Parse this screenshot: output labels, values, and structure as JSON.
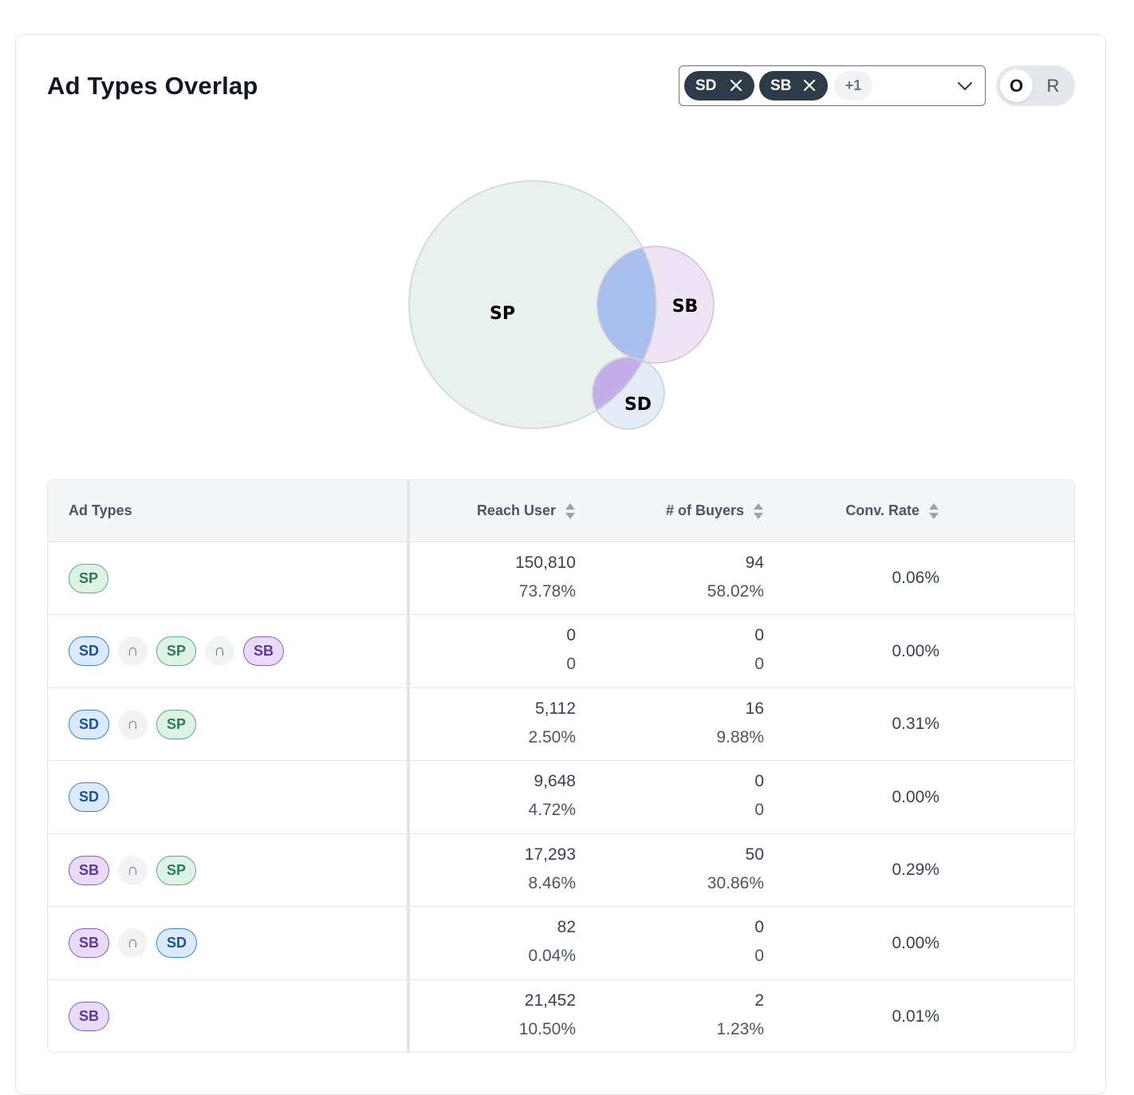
{
  "panel": {
    "title": "Ad Types Overlap"
  },
  "filter": {
    "chips": [
      {
        "label": "SD"
      },
      {
        "label": "SB"
      }
    ],
    "more_label": "+1"
  },
  "toggle": {
    "option_o": "O",
    "option_r": "R",
    "selected": "O"
  },
  "venn": {
    "sets": [
      {
        "label": "SP",
        "color": "#e8f1ee"
      },
      {
        "label": "SB",
        "color": "#efe4f6"
      },
      {
        "label": "SD",
        "color": "#e4ecf8"
      }
    ],
    "intersection_colors": {
      "SP_SB": "#a9bfee",
      "SP_SD": "#c4aee9"
    }
  },
  "table": {
    "headers": {
      "ad_types": "Ad Types",
      "reach_user": "Reach User",
      "buyers": "# of Buyers",
      "conv_rate": "Conv. Rate"
    },
    "rows": [
      {
        "types": [
          "SP"
        ],
        "reach": "150,810",
        "reach_pct": "73.78%",
        "buyers": "94",
        "buyers_pct": "58.02%",
        "conv": "0.06%"
      },
      {
        "types": [
          "SD",
          "SP",
          "SB"
        ],
        "reach": "0",
        "reach_pct": "0",
        "buyers": "0",
        "buyers_pct": "0",
        "conv": "0.00%"
      },
      {
        "types": [
          "SD",
          "SP"
        ],
        "reach": "5,112",
        "reach_pct": "2.50%",
        "buyers": "16",
        "buyers_pct": "9.88%",
        "conv": "0.31%"
      },
      {
        "types": [
          "SD"
        ],
        "reach": "9,648",
        "reach_pct": "4.72%",
        "buyers": "0",
        "buyers_pct": "0",
        "conv": "0.00%"
      },
      {
        "types": [
          "SB",
          "SP"
        ],
        "reach": "17,293",
        "reach_pct": "8.46%",
        "buyers": "50",
        "buyers_pct": "30.86%",
        "conv": "0.29%"
      },
      {
        "types": [
          "SB",
          "SD"
        ],
        "reach": "82",
        "reach_pct": "0.04%",
        "buyers": "0",
        "buyers_pct": "0",
        "conv": "0.00%"
      },
      {
        "types": [
          "SB"
        ],
        "reach": "21,452",
        "reach_pct": "10.50%",
        "buyers": "2",
        "buyers_pct": "1.23%",
        "conv": "0.01%"
      }
    ],
    "intersect_symbol": "∩"
  }
}
